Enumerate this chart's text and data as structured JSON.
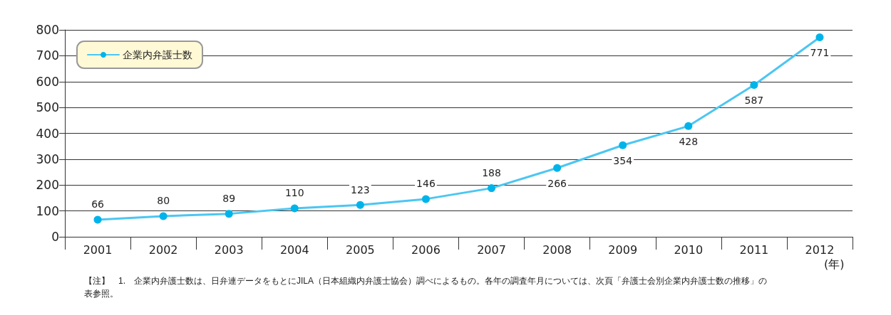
{
  "chart_data": {
    "type": "line",
    "xlabel": "(年)",
    "categories": [
      "2001",
      "2002",
      "2003",
      "2004",
      "2005",
      "2006",
      "2007",
      "2008",
      "2009",
      "2010",
      "2011",
      "2012"
    ],
    "series": [
      {
        "name": "企業内弁護士数",
        "color": "#4cc6f2",
        "values": [
          66,
          80,
          89,
          110,
          123,
          146,
          188,
          266,
          354,
          428,
          587,
          771
        ]
      }
    ],
    "ylim": [
      0,
      800
    ],
    "yticks": [
      0,
      100,
      200,
      300,
      400,
      500,
      600,
      700,
      800
    ],
    "grid": "y",
    "legend": "top left",
    "marker": "circle",
    "line_style": "solid",
    "data_labels": true,
    "annotations": [
      "【注】　1.　企業内弁護士数は、日弁連データをもとにJILA（日本組織内弁護士協会）調べによるもの。各年の調査年月については、次頁「弁護士会別企業内弁護士数の推移」の表参照。"
    ]
  }
}
